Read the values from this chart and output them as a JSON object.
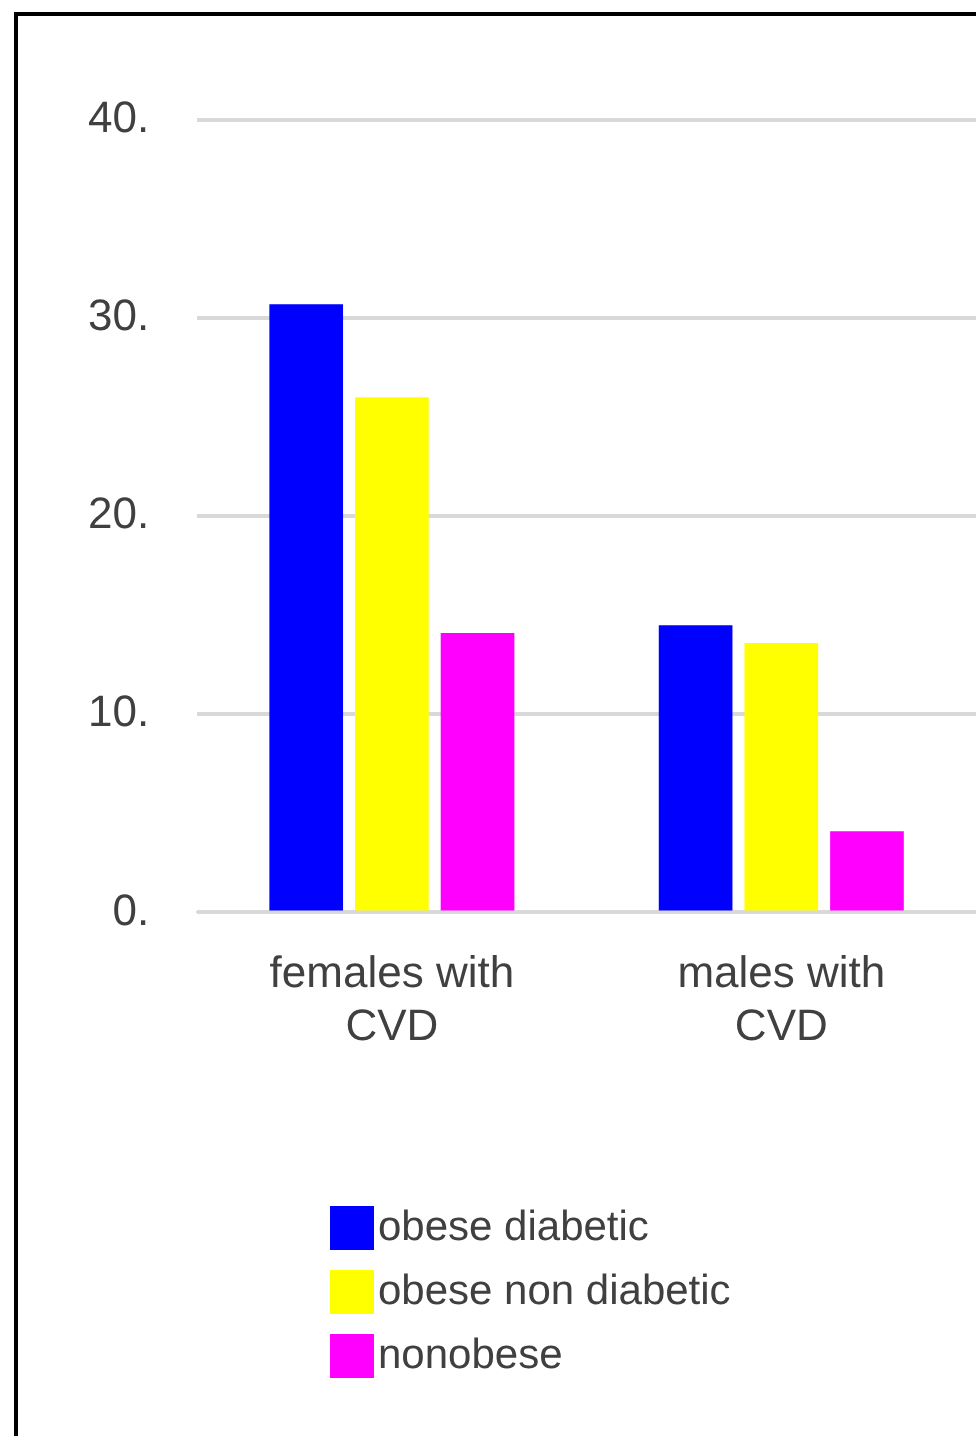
{
  "chart_data": {
    "type": "bar",
    "categories": [
      "females with CVD",
      "males with CVD"
    ],
    "series": [
      {
        "name": "obese diabetic",
        "color": "#0000ff",
        "values": [
          30.7,
          14.5
        ]
      },
      {
        "name": "obese non diabetic",
        "color": "#ffff00",
        "values": [
          26.0,
          13.6
        ]
      },
      {
        "name": "nonobese",
        "color": "#ff00ff",
        "values": [
          14.1,
          4.1
        ]
      }
    ],
    "ylim": [
      0,
      40
    ],
    "yticks": [
      {
        "value": 0,
        "label": "0."
      },
      {
        "value": 10,
        "label": "10."
      },
      {
        "value": 20,
        "label": "20."
      },
      {
        "value": 30,
        "label": "30."
      },
      {
        "value": 40,
        "label": "40."
      }
    ],
    "grid": "y",
    "legend": "bottom"
  }
}
